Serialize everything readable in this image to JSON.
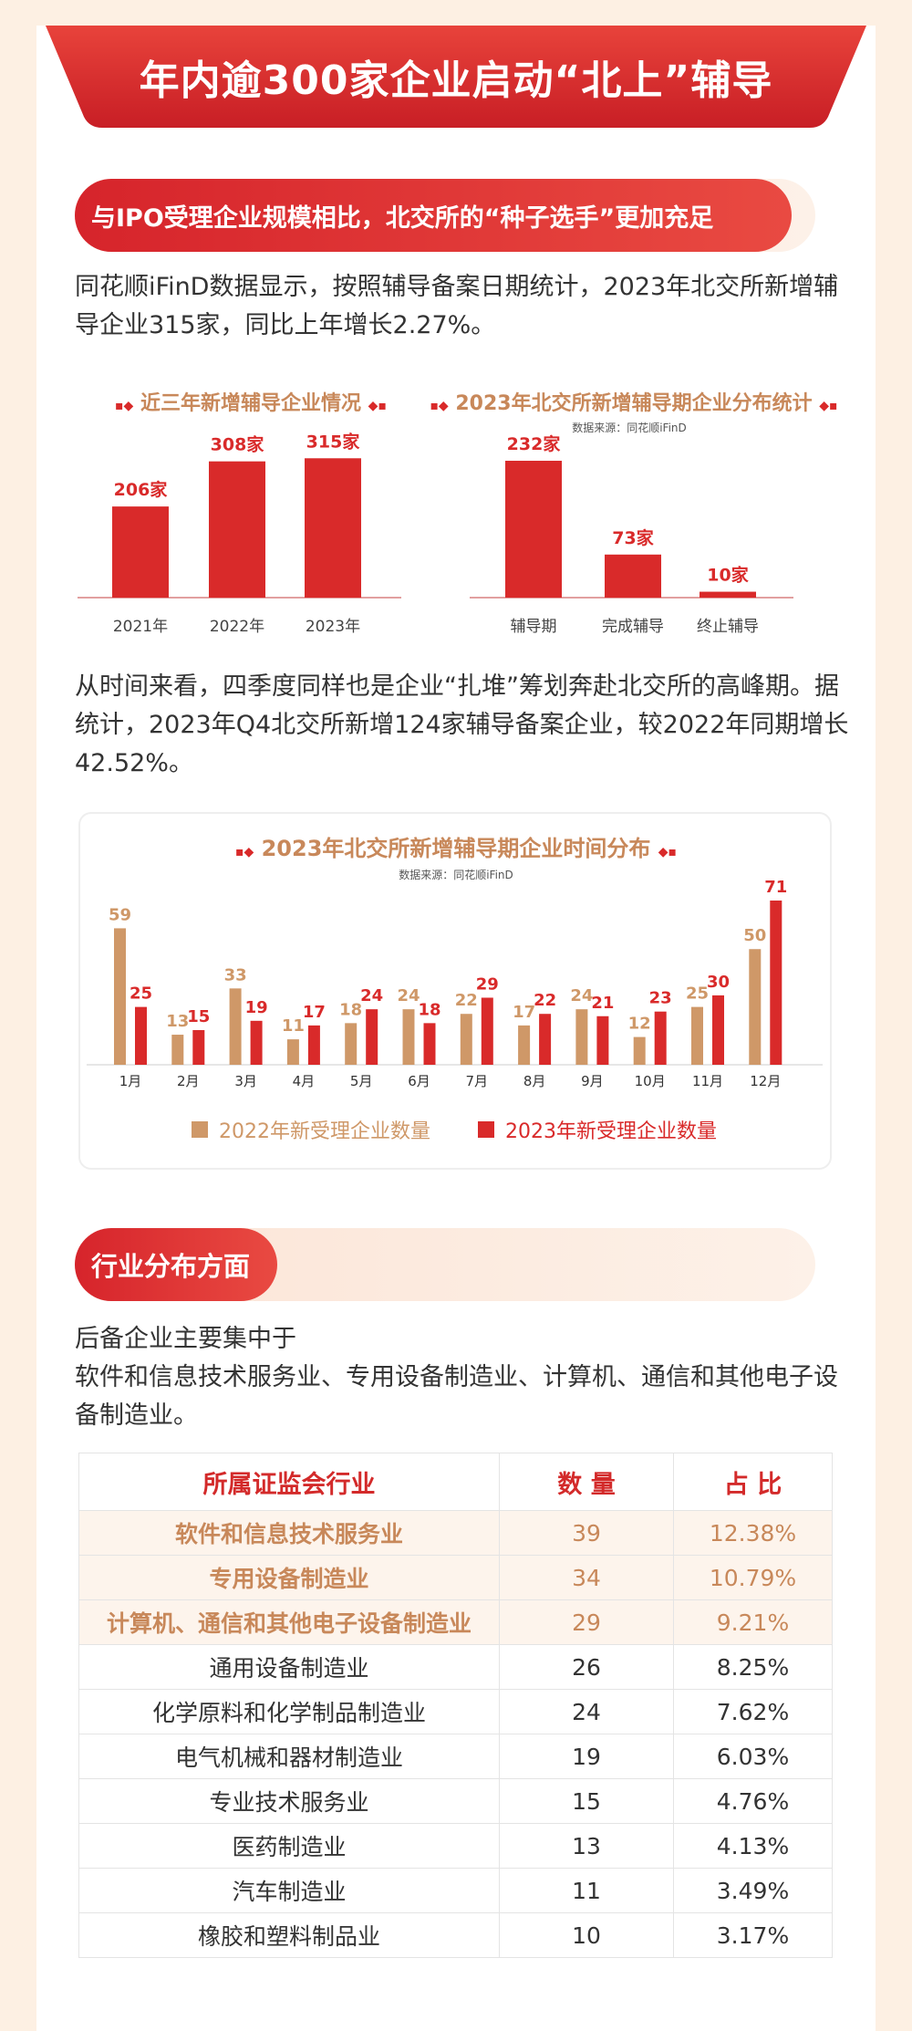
{
  "banner_title": "年内逾300家企业启动“北上”辅导",
  "section1": {
    "heading": "与IPO受理企业规模相比，北交所的“种子选手”更加充足",
    "para1": "同花顺iFinD数据显示，按照辅导备案日期统计，2023年北交所新增辅导企业315家，同比上年增长2.27%。",
    "para2": "从时间来看，四季度同样也是企业“扎堆”筹划奔赴北交所的高峰期。据统计，2023年Q4北交所新增124家辅导备案企业，较2022年同期增长42.52%。"
  },
  "colors": {
    "red": "#d92a2a",
    "tan": "#cf9868",
    "title_tan": "#c8885a"
  },
  "chart_data": [
    {
      "type": "bar",
      "title": "近三年新增辅导企业情况",
      "categories": [
        "2021年",
        "2022年",
        "2023年"
      ],
      "values": [
        206,
        308,
        315
      ],
      "labels": [
        "206家",
        "308家",
        "315家"
      ],
      "ylim": [
        0,
        330
      ]
    },
    {
      "type": "bar",
      "title": "2023年北交所新增辅导期企业分布统计",
      "source": "数据来源：同花顺iFinD",
      "categories": [
        "辅导期",
        "完成辅导",
        "终止辅导"
      ],
      "values": [
        232,
        73,
        10
      ],
      "labels": [
        "232家",
        "73家",
        "10家"
      ],
      "ylim": [
        0,
        232
      ]
    },
    {
      "type": "bar",
      "title": "2023年北交所新增辅导期企业时间分布",
      "source": "数据来源：同花顺iFinD",
      "categories": [
        "1月",
        "2月",
        "3月",
        "4月",
        "5月",
        "6月",
        "7月",
        "8月",
        "9月",
        "10月",
        "11月",
        "12月"
      ],
      "series": [
        {
          "name": "2022年新受理企业数量",
          "values": [
            59,
            13,
            33,
            11,
            18,
            24,
            22,
            17,
            24,
            12,
            25,
            50
          ]
        },
        {
          "name": "2023年新受理企业数量",
          "values": [
            25,
            15,
            19,
            17,
            24,
            18,
            29,
            22,
            21,
            23,
            30,
            71
          ]
        }
      ],
      "ylim": [
        0,
        71
      ]
    }
  ],
  "section2": {
    "heading": "行业分布方面",
    "intro_line1": "后备企业主要集中于",
    "intro_line2": "软件和信息技术服务业、专用设备制造业、计算机、通信和其他电子设备制造业。"
  },
  "table": {
    "headers": [
      "所属证监会行业",
      "数 量",
      "占 比"
    ],
    "rows": [
      [
        "软件和信息技术服务业",
        "39",
        "12.38%"
      ],
      [
        "专用设备制造业",
        "34",
        "10.79%"
      ],
      [
        "计算机、通信和其他电子设备制造业",
        "29",
        "9.21%"
      ],
      [
        "通用设备制造业",
        "26",
        "8.25%"
      ],
      [
        "化学原料和化学制品制造业",
        "24",
        "7.62%"
      ],
      [
        "电气机械和器材制造业",
        "19",
        "6.03%"
      ],
      [
        "专业技术服务业",
        "15",
        "4.76%"
      ],
      [
        "医药制造业",
        "13",
        "4.13%"
      ],
      [
        "汽车制造业",
        "11",
        "3.49%"
      ],
      [
        "橡胶和塑料制品业",
        "10",
        "3.17%"
      ]
    ]
  }
}
